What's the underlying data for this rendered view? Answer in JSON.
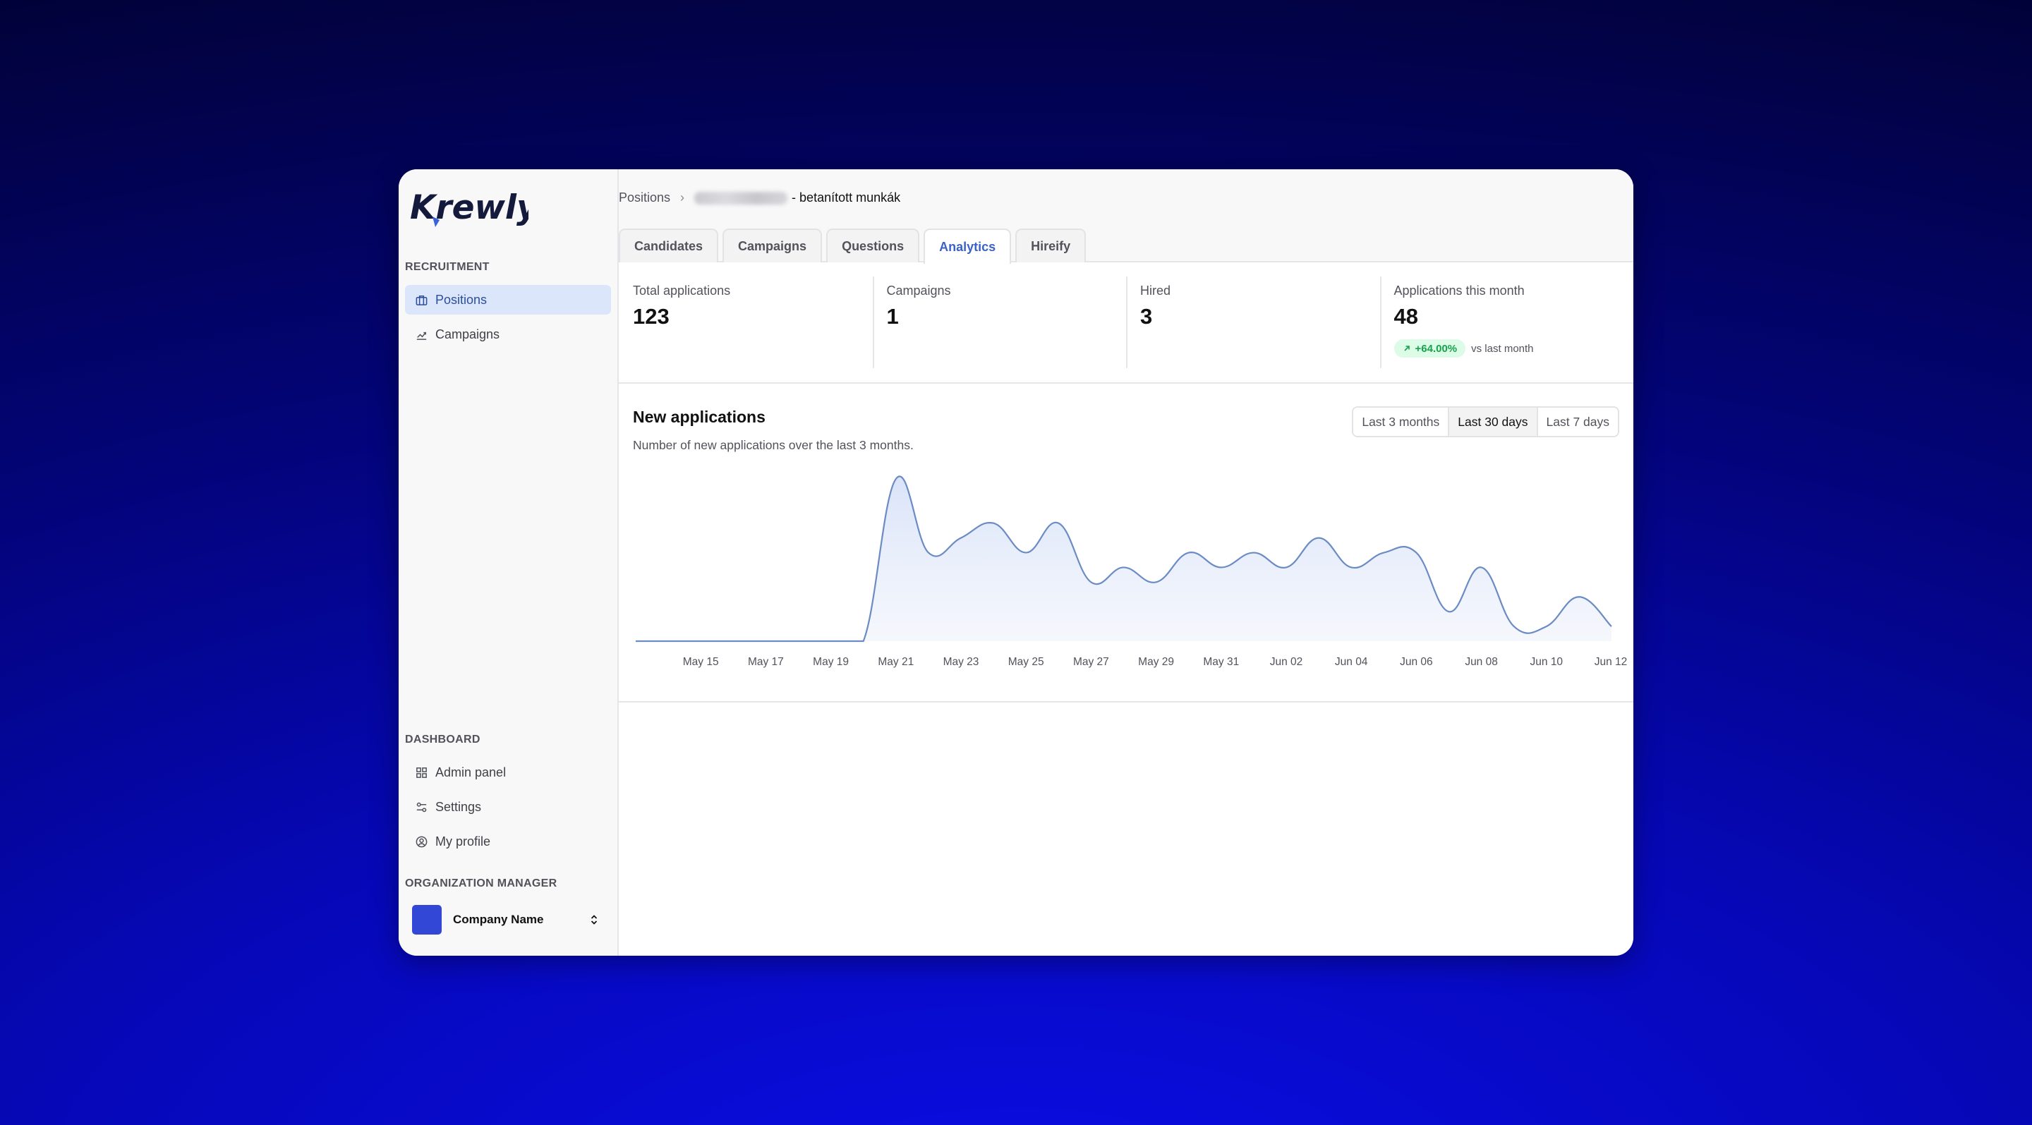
{
  "sidebar": {
    "logo_text": "Krewly",
    "recruitment_label": "RECRUITMENT",
    "recruitment_items": [
      {
        "label": "Positions",
        "icon": "briefcase-icon",
        "active": true
      },
      {
        "label": "Campaigns",
        "icon": "chart-icon",
        "active": false
      }
    ],
    "dashboard_label": "DASHBOARD",
    "dashboard_items": [
      {
        "label": "Admin panel",
        "icon": "grid-icon"
      },
      {
        "label": "Settings",
        "icon": "sliders-icon"
      },
      {
        "label": "My profile",
        "icon": "user-circle-icon"
      }
    ],
    "org_label": "ORGANIZATION MANAGER",
    "org_name": "Company Name",
    "org_color": "#3347d6"
  },
  "breadcrumb": {
    "root": "Positions",
    "current_suffix": "- betanított munkák"
  },
  "tabs": [
    {
      "label": "Candidates",
      "active": false
    },
    {
      "label": "Campaigns",
      "active": false
    },
    {
      "label": "Questions",
      "active": false
    },
    {
      "label": "Analytics",
      "active": true
    },
    {
      "label": "Hireify",
      "active": false
    }
  ],
  "stats": [
    {
      "label": "Total applications",
      "value": "123"
    },
    {
      "label": "Campaigns",
      "value": "1"
    },
    {
      "label": "Hired",
      "value": "3"
    },
    {
      "label": "Applications this month",
      "value": "48",
      "delta": "+64.00%",
      "delta_note": "vs last month"
    }
  ],
  "chart": {
    "title": "New applications",
    "subtitle": "Number of new applications over the last 3 months.",
    "ranges": [
      {
        "label": "Last 3 months",
        "active": false
      },
      {
        "label": "Last 30 days",
        "active": true
      },
      {
        "label": "Last 7 days",
        "active": false
      }
    ]
  },
  "chart_data": {
    "type": "area",
    "title": "New applications",
    "xlabel": "",
    "ylabel": "",
    "x_ticks": [
      "May 15",
      "May 17",
      "May 19",
      "May 21",
      "May 23",
      "May 25",
      "May 27",
      "May 29",
      "May 31",
      "Jun 02",
      "Jun 04",
      "Jun 06",
      "Jun 08",
      "Jun 10",
      "Jun 12"
    ],
    "x": [
      "May 13",
      "May 14",
      "May 15",
      "May 16",
      "May 17",
      "May 18",
      "May 19",
      "May 20",
      "May 21",
      "May 22",
      "May 23",
      "May 24",
      "May 25",
      "May 26",
      "May 27",
      "May 28",
      "May 29",
      "May 30",
      "May 31",
      "Jun 01",
      "Jun 02",
      "Jun 03",
      "Jun 04",
      "Jun 05",
      "Jun 06",
      "Jun 07",
      "Jun 08",
      "Jun 09",
      "Jun 10",
      "Jun 11",
      "Jun 12"
    ],
    "values": [
      0,
      0,
      0,
      0,
      0,
      0,
      0,
      0,
      11,
      6,
      7,
      8,
      6,
      8,
      4,
      5,
      4,
      6,
      5,
      6,
      5,
      7,
      5,
      6,
      6,
      2,
      5,
      1,
      1,
      3,
      1
    ],
    "ylim": [
      0,
      11
    ],
    "grid": false,
    "line_color": "#6b8bc4",
    "fill_color": "#e3eaf9"
  }
}
